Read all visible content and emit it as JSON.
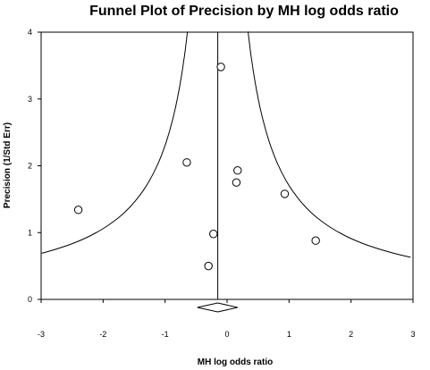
{
  "chart_data": {
    "type": "scatter",
    "title": "Funnel Plot of Precision by MH log odds ratio",
    "xlabel": "MH log odds ratio",
    "ylabel": "Precision (1/Std Err)",
    "xlim": [
      -3,
      3
    ],
    "ylim": [
      0,
      4
    ],
    "xticks": [
      "-3",
      "-2",
      "-1",
      "0",
      "1",
      "2",
      "3"
    ],
    "yticks": [
      "0",
      "1",
      "2",
      "3",
      "4"
    ],
    "grid": false,
    "legend": "none",
    "pooled_estimate": -0.15,
    "points": [
      {
        "x": -2.4,
        "y": 1.34
      },
      {
        "x": -0.65,
        "y": 2.05
      },
      {
        "x": -0.1,
        "y": 3.48
      },
      {
        "x": 0.17,
        "y": 1.93
      },
      {
        "x": 0.15,
        "y": 1.75
      },
      {
        "x": -0.22,
        "y": 0.98
      },
      {
        "x": -0.3,
        "y": 0.5
      },
      {
        "x": 0.93,
        "y": 1.58
      },
      {
        "x": 1.43,
        "y": 0.88
      }
    ],
    "summary_diamond": {
      "center": -0.15,
      "lower": -0.48,
      "upper": 0.17
    },
    "colors": {
      "line": "#000000",
      "marker_fill": "#ffffff",
      "marker_stroke": "#000000"
    }
  }
}
